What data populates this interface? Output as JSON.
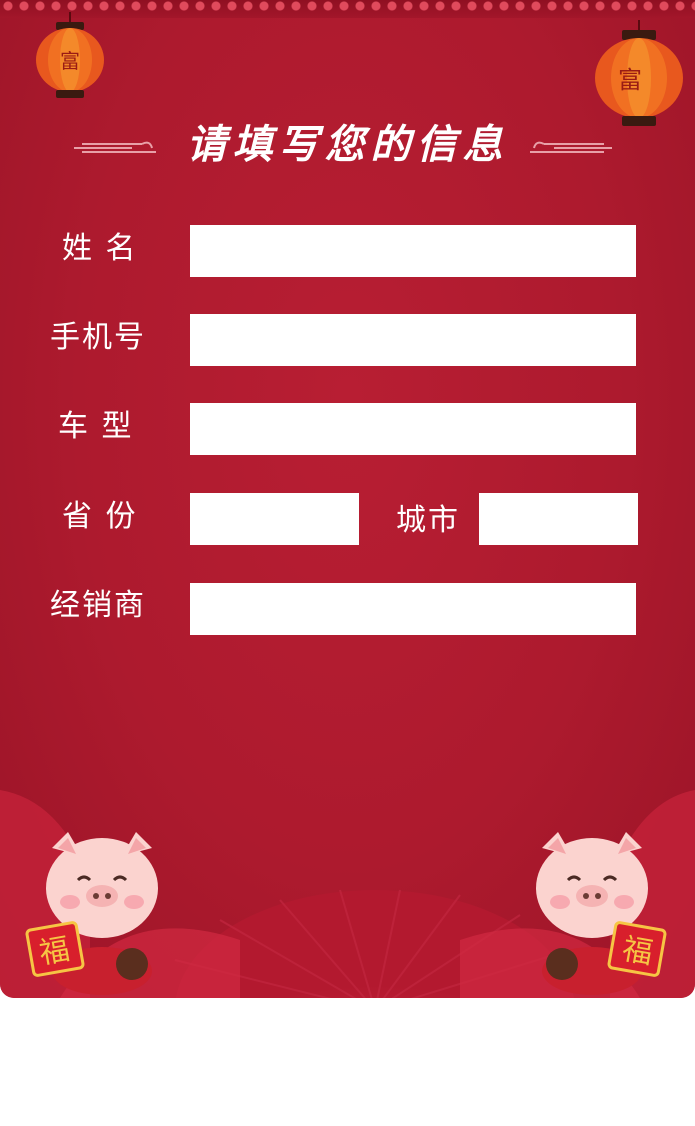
{
  "header": {
    "title": "请填写您的信息"
  },
  "form": {
    "name_label": "姓 名",
    "phone_label": "手机号",
    "car_model_label": "车 型",
    "province_label": "省 份",
    "city_label": "城市",
    "dealer_label": "经销商",
    "name_value": "",
    "phone_value": "",
    "car_model_value": "",
    "province_value": "",
    "city_value": "",
    "dealer_value": ""
  },
  "decorations": {
    "lantern_char": "富",
    "fu_char": "福",
    "icons": [
      "lantern-icon",
      "pig-mascot-icon",
      "fan-icon",
      "cloud-swirl-icon"
    ]
  },
  "colors": {
    "background": "#ad1a2e",
    "field": "#ffffff",
    "text": "#ffffff",
    "gold": "#f6c544"
  }
}
